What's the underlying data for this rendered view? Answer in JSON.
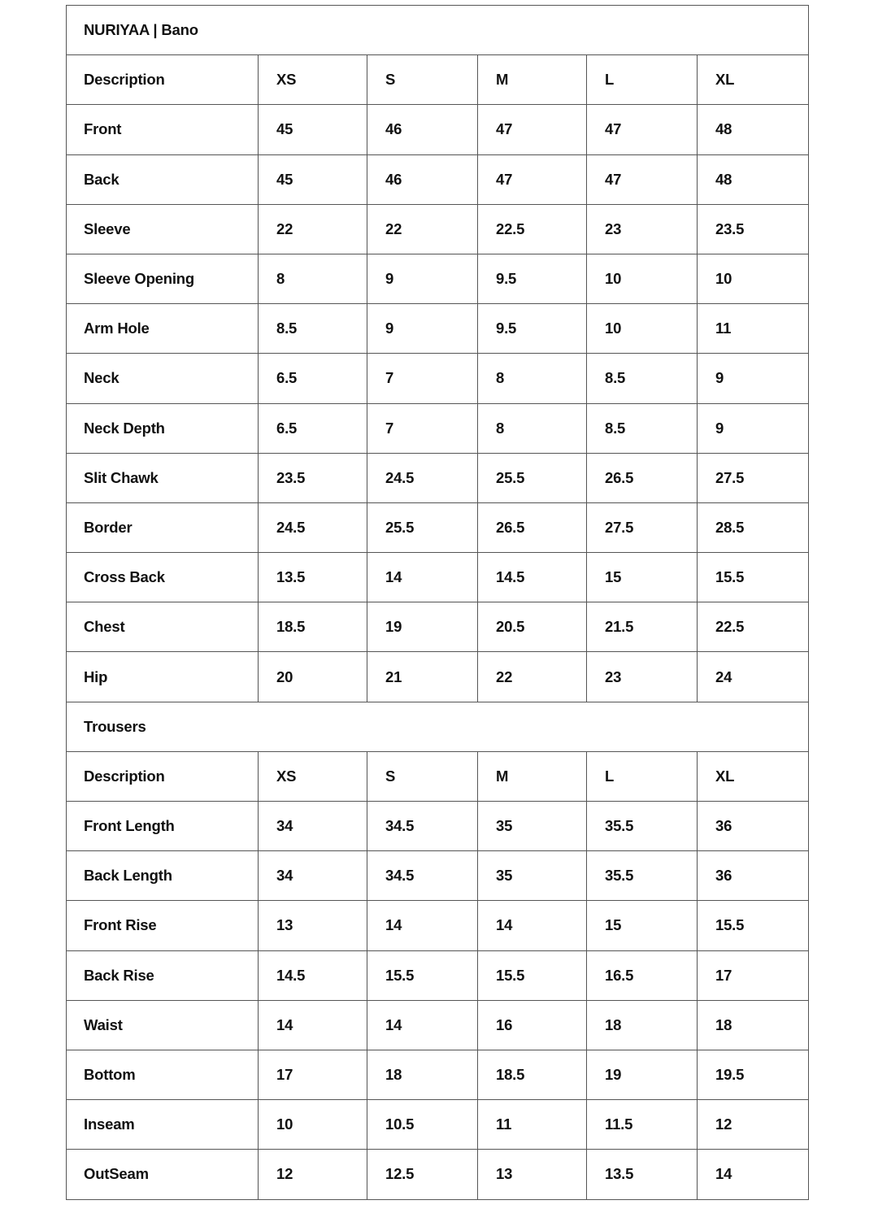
{
  "title": "NURIYAA | Bano",
  "top_section": {
    "header": [
      "Description",
      "XS",
      "S",
      "M",
      "L",
      "XL"
    ],
    "rows": [
      [
        "Front",
        "45",
        "46",
        "47",
        "47",
        "48"
      ],
      [
        "Back",
        "45",
        "46",
        "47",
        "47",
        "48"
      ],
      [
        "Sleeve",
        "22",
        "22",
        "22.5",
        "23",
        "23.5"
      ],
      [
        "Sleeve Opening",
        "8",
        "9",
        "9.5",
        "10",
        "10"
      ],
      [
        "Arm Hole",
        "8.5",
        "9",
        "9.5",
        "10",
        "11"
      ],
      [
        "Neck",
        "6.5",
        "7",
        "8",
        "8.5",
        "9"
      ],
      [
        "Neck Depth",
        "6.5",
        "7",
        "8",
        "8.5",
        "9"
      ],
      [
        "Slit Chawk",
        "23.5",
        "24.5",
        "25.5",
        "26.5",
        "27.5"
      ],
      [
        "Border",
        "24.5",
        "25.5",
        "26.5",
        "27.5",
        "28.5"
      ],
      [
        "Cross Back",
        "13.5",
        "14",
        "14.5",
        "15",
        "15.5"
      ],
      [
        "Chest",
        "18.5",
        "19",
        "20.5",
        "21.5",
        "22.5"
      ],
      [
        "Hip",
        "20",
        "21",
        "22",
        "23",
        "24"
      ]
    ]
  },
  "trousers": {
    "title": "Trousers",
    "header": [
      "Description",
      "XS",
      "S",
      "M",
      "L",
      "XL"
    ],
    "rows": [
      [
        "Front Length",
        "34",
        "34.5",
        "35",
        "35.5",
        "36"
      ],
      [
        "Back Length",
        "34",
        "34.5",
        "35",
        "35.5",
        "36"
      ],
      [
        "Front Rise",
        "13",
        "14",
        "14",
        "15",
        "15.5"
      ],
      [
        "Back Rise",
        "14.5",
        "15.5",
        "15.5",
        "16.5",
        "17"
      ],
      [
        "Waist",
        "14",
        "14",
        "16",
        "18",
        "18"
      ],
      [
        "Bottom",
        "17",
        "18",
        "18.5",
        "19",
        "19.5"
      ],
      [
        "Inseam",
        "10",
        "10.5",
        "11",
        "11.5",
        "12"
      ],
      [
        "OutSeam",
        "12",
        "12.5",
        "13",
        "13.5",
        "14"
      ]
    ]
  }
}
